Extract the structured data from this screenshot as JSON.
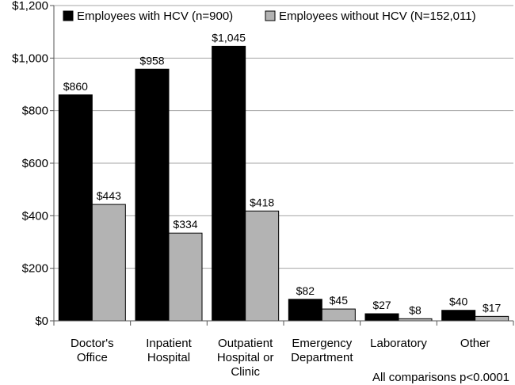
{
  "chart_data": {
    "type": "bar",
    "categories": [
      [
        "Doctor's",
        "Office"
      ],
      [
        "Inpatient",
        "Hospital"
      ],
      [
        "Outpatient",
        "Hospital or",
        "Clinic"
      ],
      [
        "Emergency",
        "Department"
      ],
      [
        "Laboratory"
      ],
      [
        "Other"
      ]
    ],
    "series": [
      {
        "name": "Employees with HCV (n=900)",
        "color": "#000000",
        "values": [
          860,
          958,
          1045,
          82,
          27,
          40
        ],
        "labels": [
          "$860",
          "$958",
          "$1,045",
          "$82",
          "$27",
          "$40"
        ]
      },
      {
        "name": "Employees without HCV (N=152,011)",
        "color": "#b3b3b3",
        "values": [
          443,
          334,
          418,
          45,
          8,
          17
        ],
        "labels": [
          "$443",
          "$334",
          "$418",
          "$45",
          "$8",
          "$17"
        ]
      }
    ],
    "ylim": [
      0,
      1200
    ],
    "yticks": [
      0,
      200,
      400,
      600,
      800,
      1000,
      1200
    ],
    "ytick_labels": [
      "$0",
      "$200",
      "$400",
      "$600",
      "$800",
      "$1,000",
      "$1,200"
    ],
    "grid": true,
    "legend": "top",
    "annotation": "All comparisons p<0.0001"
  }
}
